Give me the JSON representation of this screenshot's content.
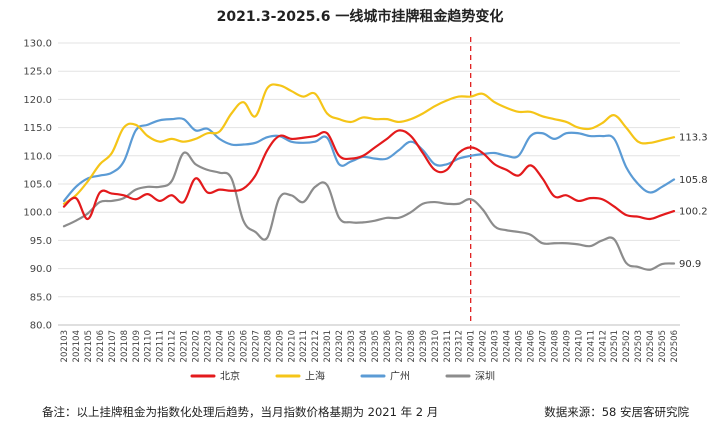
{
  "chart_data": {
    "type": "line",
    "title": "2021.3-2025.6 一线城市挂牌租金趋势变化",
    "ylim": [
      80,
      130
    ],
    "yticks": [
      "80.0",
      "85.0",
      "90.0",
      "95.0",
      "100.0",
      "105.0",
      "110.0",
      "115.0",
      "120.0",
      "125.0",
      "130.0"
    ],
    "grid": true,
    "legend_position": "bottom",
    "x": [
      "202103",
      "202104",
      "202105",
      "202106",
      "202107",
      "202108",
      "202109",
      "202110",
      "202111",
      "202112",
      "202201",
      "202202",
      "202203",
      "202204",
      "202205",
      "202206",
      "202207",
      "202208",
      "202209",
      "202210",
      "202211",
      "202212",
      "202301",
      "202302",
      "202303",
      "202304",
      "202305",
      "202306",
      "202307",
      "202308",
      "202309",
      "202310",
      "202311",
      "202312",
      "202401",
      "202402",
      "202403",
      "202404",
      "202405",
      "202406",
      "202407",
      "202408",
      "202409",
      "202410",
      "202411",
      "202412",
      "202501",
      "202502",
      "202503",
      "202504",
      "202505",
      "202506"
    ],
    "reference_line": {
      "x": "202401",
      "color": "#e02020",
      "style": "dashed"
    },
    "series": [
      {
        "name": "北京",
        "color": "#e31a1c",
        "values": [
          101.0,
          102.5,
          98.8,
          103.5,
          103.3,
          103.0,
          102.3,
          103.2,
          102.0,
          103.0,
          101.8,
          106.0,
          103.5,
          104.0,
          103.8,
          104.2,
          106.5,
          111.0,
          113.5,
          113.0,
          113.2,
          113.5,
          114.0,
          110.0,
          109.5,
          110.0,
          111.5,
          113.0,
          114.5,
          113.5,
          110.5,
          107.5,
          107.5,
          110.5,
          111.5,
          110.5,
          108.5,
          107.5,
          106.5,
          108.3,
          106.0,
          102.8,
          103.0,
          102.0,
          102.5,
          102.3,
          101.0,
          99.5,
          99.2,
          98.8,
          99.5,
          100.2
        ],
        "end_label": "100.2"
      },
      {
        "name": "上海",
        "color": "#f5c518",
        "values": [
          101.5,
          103.0,
          105.5,
          108.5,
          110.5,
          115.0,
          115.5,
          113.5,
          112.5,
          113.0,
          112.5,
          113.0,
          114.0,
          114.3,
          117.5,
          119.5,
          117.0,
          122.0,
          122.5,
          121.5,
          120.5,
          121.0,
          117.5,
          116.5,
          116.0,
          116.8,
          116.5,
          116.5,
          116.0,
          116.5,
          117.5,
          118.8,
          119.8,
          120.5,
          120.5,
          121.0,
          119.5,
          118.5,
          117.8,
          117.8,
          117.0,
          116.5,
          116.0,
          115.0,
          114.8,
          115.8,
          117.2,
          115.0,
          112.5,
          112.3,
          112.8,
          113.3
        ],
        "end_label": "113.3"
      },
      {
        "name": "广州",
        "color": "#5b9bd5",
        "values": [
          102.0,
          104.5,
          106.0,
          106.5,
          107.0,
          109.0,
          114.5,
          115.5,
          116.3,
          116.5,
          116.5,
          114.5,
          114.8,
          113.0,
          112.0,
          112.0,
          112.3,
          113.3,
          113.5,
          112.5,
          112.3,
          112.5,
          113.2,
          108.5,
          109.0,
          109.8,
          109.5,
          109.5,
          111.0,
          112.5,
          111.0,
          108.5,
          108.5,
          109.5,
          110.0,
          110.3,
          110.5,
          110.0,
          110.0,
          113.5,
          114.0,
          113.0,
          114.0,
          114.0,
          113.5,
          113.5,
          113.0,
          108.0,
          105.0,
          103.5,
          104.5,
          105.8
        ],
        "end_label": "105.8"
      },
      {
        "name": "深圳",
        "color": "#8c8c8c",
        "values": [
          97.5,
          98.5,
          99.8,
          101.8,
          102.0,
          102.5,
          104.0,
          104.5,
          104.5,
          105.5,
          110.5,
          108.5,
          107.5,
          107.0,
          106.0,
          98.5,
          96.5,
          95.5,
          102.5,
          103.0,
          101.8,
          104.5,
          104.8,
          99.0,
          98.2,
          98.2,
          98.5,
          99.0,
          99.0,
          100.0,
          101.5,
          101.8,
          101.5,
          101.5,
          102.3,
          100.5,
          97.5,
          96.8,
          96.5,
          96.0,
          94.5,
          94.5,
          94.5,
          94.3,
          94.0,
          95.0,
          95.2,
          91.0,
          90.3,
          89.8,
          90.8,
          90.9
        ],
        "end_label": "90.9"
      }
    ]
  },
  "footer": {
    "note": "备注：以上挂牌租金为指数化处理后趋势，当月指数价格基期为 2021 年 2 月",
    "source": "数据来源：58 安居客研究院"
  }
}
